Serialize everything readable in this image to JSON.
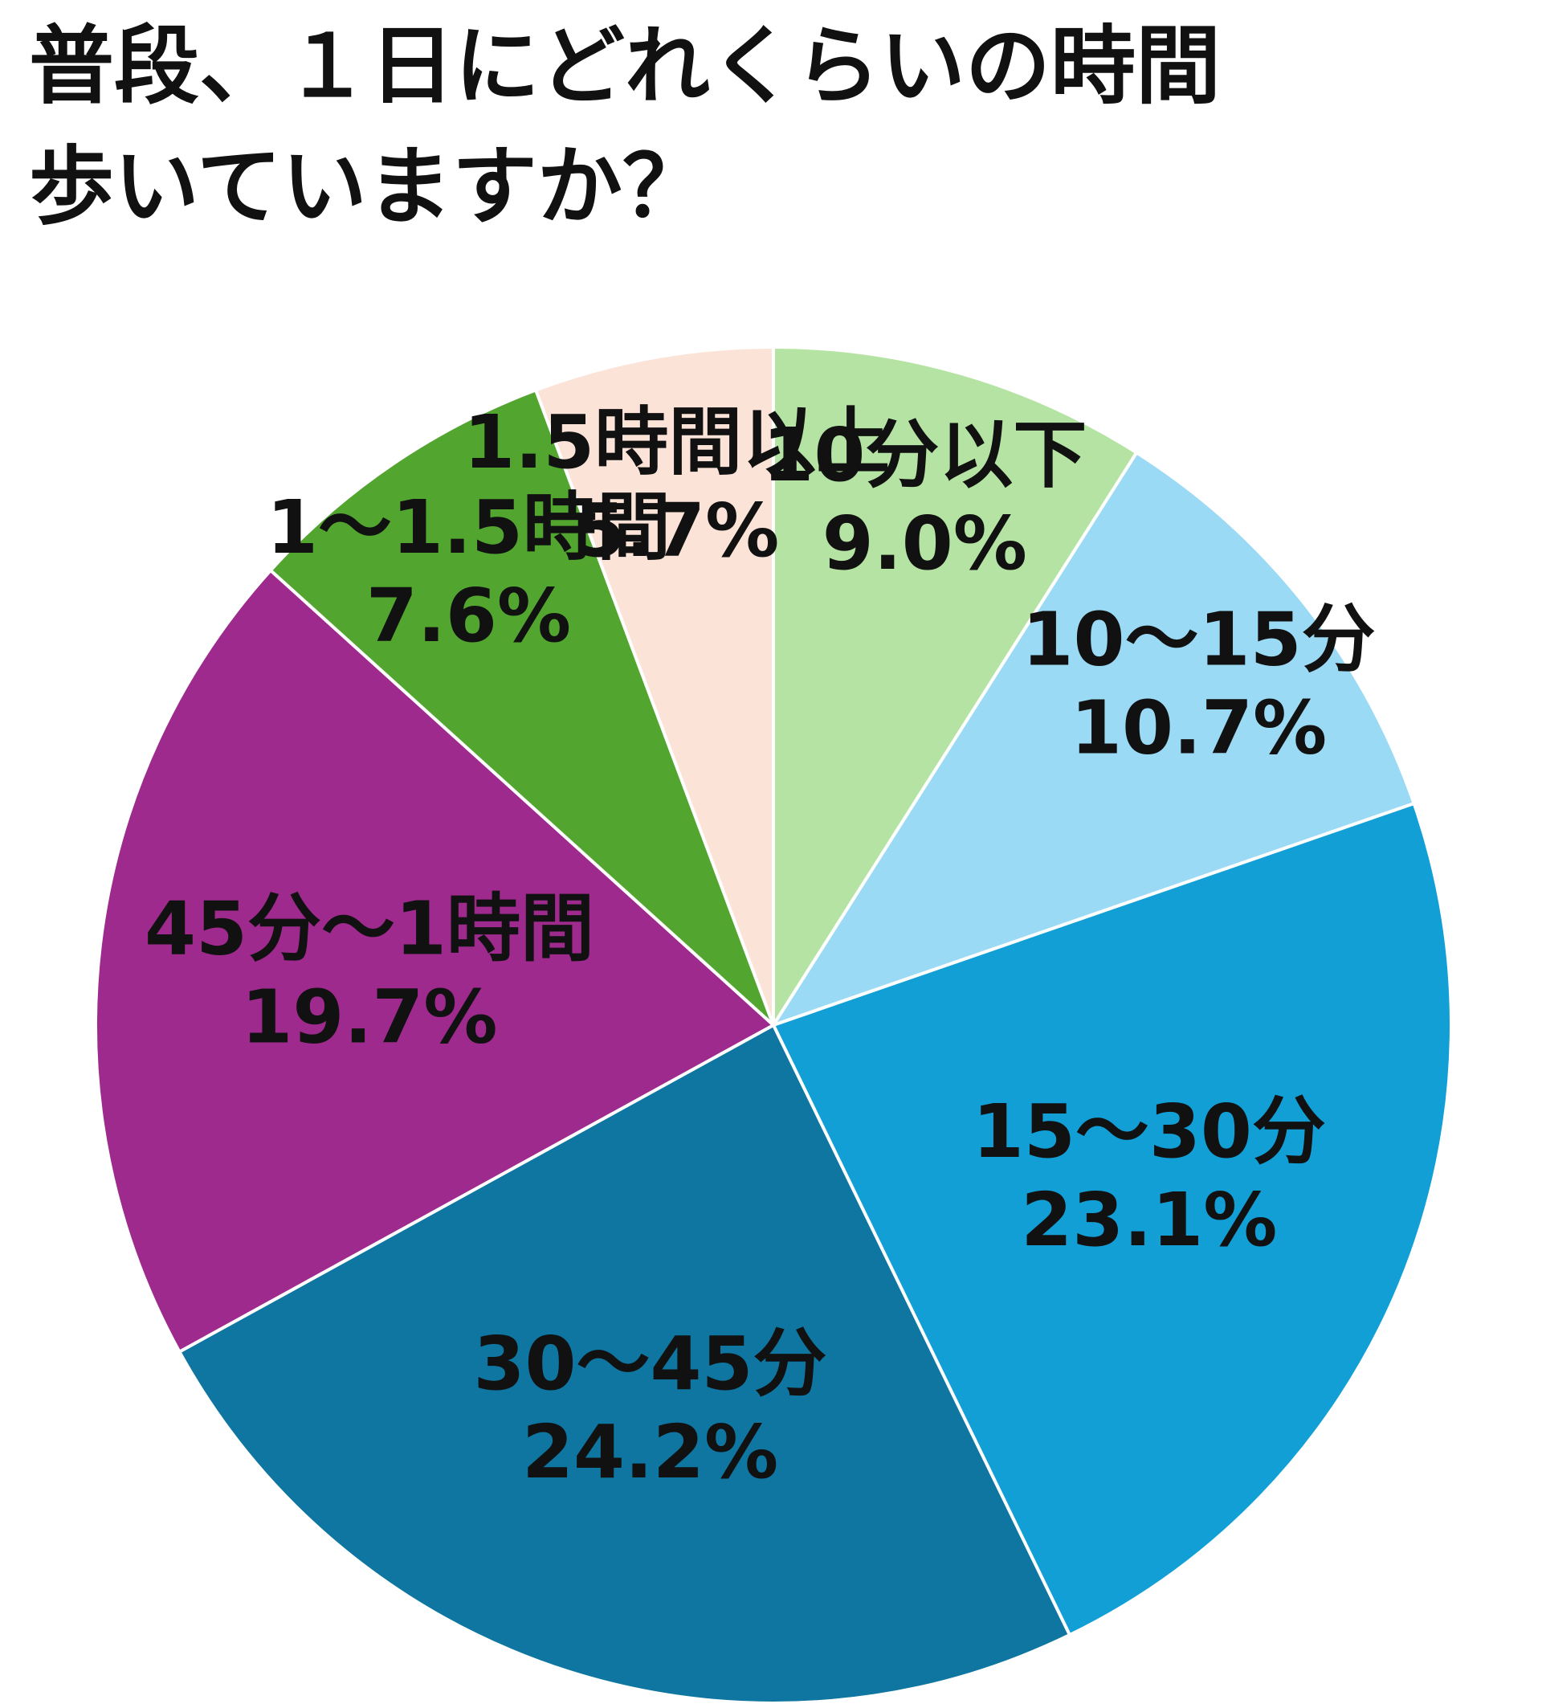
{
  "chart_data": {
    "type": "pie",
    "title": [
      "普段、１日にどれくらいの時間",
      "歩いていますか？"
    ],
    "categories": [
      "10分以下",
      "10～15分",
      "15～30分",
      "30～45分",
      "45分～1時間",
      "1～1.5時間",
      "1.5時間以上"
    ],
    "values": [
      9.0,
      10.7,
      23.1,
      24.2,
      19.7,
      7.6,
      5.7
    ],
    "value_labels": [
      "9.0%",
      "10.7%",
      "23.1%",
      "24.2%",
      "19.7%",
      "7.6%",
      "5.7%"
    ],
    "colors": [
      "#b5e3a3",
      "#9bdaf5",
      "#129fd6",
      "#0e76a0",
      "#9e2a8e",
      "#52a630",
      "#fbe3d8"
    ]
  }
}
